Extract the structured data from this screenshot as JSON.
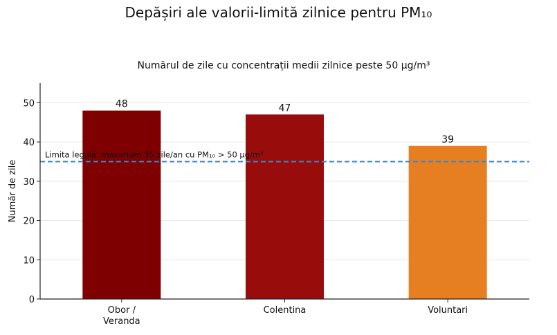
{
  "title": "Depășiri ale valorii-limită zilnice pentru PM₁₀",
  "chart_data": {
    "type": "bar",
    "subtitle": "Numărul de zile cu concentrații medii zilnice peste 50 µg/m³",
    "ylabel": "Număr de zile",
    "xlabel": "",
    "categories": [
      [
        "Obor /",
        "Veranda"
      ],
      [
        "Colentina"
      ],
      [
        "Voluntari"
      ]
    ],
    "values": [
      48,
      47,
      39
    ],
    "data_labels": [
      "48",
      "47",
      "39"
    ],
    "bar_colors": [
      "#7f0000",
      "#990c0c",
      "#e67e22"
    ],
    "ylim": [
      0,
      55
    ],
    "yticks": [
      0,
      10,
      20,
      30,
      40,
      50
    ],
    "ytick_labels": [
      "0",
      "10",
      "20",
      "30",
      "40",
      "50"
    ],
    "grid": "horizontal",
    "reference_line": {
      "value": 35,
      "label": "Limita legală: maximum 35 zile/an cu PM₁₀ > 50 µg/m³",
      "color": "#3a86c8",
      "style": "dashed"
    }
  }
}
